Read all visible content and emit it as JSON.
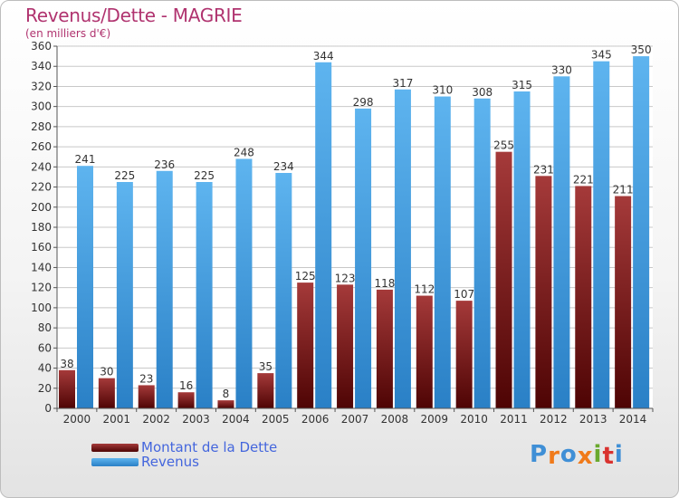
{
  "colors": {
    "debt": "#7a1c1c",
    "revenue": "#3c97d8",
    "title": "#b0336f",
    "legend_text": "#4466dd"
  },
  "chart_data": {
    "type": "bar",
    "title": "Revenus/Dette - MAGRIE",
    "subtitle": "(en milliers d'€)",
    "xlabel": "",
    "ylabel": "",
    "ylim": [
      0,
      360
    ],
    "ytick_step": 20,
    "grid": "horizontal",
    "legend_position": "bottom-left",
    "categories": [
      "2000",
      "2001",
      "2002",
      "2003",
      "2004",
      "2005",
      "2006",
      "2007",
      "2008",
      "2009",
      "2010",
      "2011",
      "2012",
      "2013",
      "2014"
    ],
    "series": [
      {
        "name": "Montant de la Dette",
        "values": [
          38,
          30,
          23,
          16,
          8,
          35,
          125,
          123,
          118,
          112,
          107,
          255,
          231,
          221,
          211
        ]
      },
      {
        "name": "Revenus",
        "values": [
          241,
          225,
          236,
          225,
          248,
          234,
          344,
          298,
          317,
          310,
          308,
          315,
          330,
          345,
          350
        ]
      }
    ]
  },
  "logo": {
    "text": "Proxiti"
  }
}
